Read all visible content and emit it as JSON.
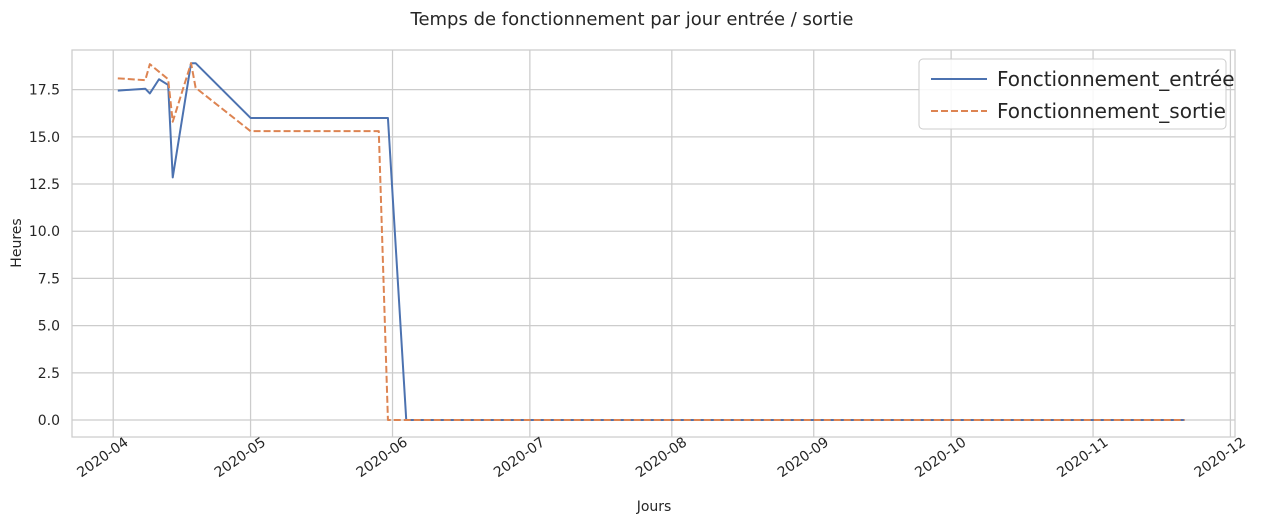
{
  "chart_data": {
    "type": "line",
    "title": "Temps de fonctionnement par jour entrée / sortie",
    "xlabel": "Jours",
    "ylabel": "Heures",
    "x_axis_type": "date",
    "xlim": [
      "2020-03-23",
      "2020-12-02"
    ],
    "ylim": [
      -0.9,
      19.6
    ],
    "xticks": [
      "2020-04-01",
      "2020-05-01",
      "2020-06-01",
      "2020-07-01",
      "2020-08-01",
      "2020-09-01",
      "2020-10-01",
      "2020-11-01",
      "2020-12-01"
    ],
    "xtick_labels": [
      "2020-04",
      "2020-05",
      "2020-06",
      "2020-07",
      "2020-08",
      "2020-09",
      "2020-10",
      "2020-11",
      "2020-12"
    ],
    "yticks": [
      0.0,
      2.5,
      5.0,
      7.5,
      10.0,
      12.5,
      15.0,
      17.5
    ],
    "ytick_labels": [
      "0.0",
      "2.5",
      "5.0",
      "7.5",
      "10.0",
      "12.5",
      "15.0",
      "17.5"
    ],
    "grid": true,
    "legend_position": "top-right",
    "series": [
      {
        "name": "Fonctionnement_entrée",
        "color": "#4c72b0",
        "style": "solid",
        "points": [
          [
            "2020-04-02",
            17.45
          ],
          [
            "2020-04-08",
            17.55
          ],
          [
            "2020-04-09",
            17.3
          ],
          [
            "2020-04-11",
            18.05
          ],
          [
            "2020-04-13",
            17.75
          ],
          [
            "2020-04-14",
            12.85
          ],
          [
            "2020-04-18",
            18.9
          ],
          [
            "2020-04-19",
            18.9
          ],
          [
            "2020-05-01",
            16.0
          ],
          [
            "2020-05-31",
            16.0
          ],
          [
            "2020-06-04",
            0.0
          ],
          [
            "2020-11-21",
            0.0
          ]
        ]
      },
      {
        "name": "Fonctionnement_sortie",
        "color": "#dd8452",
        "style": "dashed",
        "points": [
          [
            "2020-04-02",
            18.1
          ],
          [
            "2020-04-08",
            18.0
          ],
          [
            "2020-04-09",
            18.85
          ],
          [
            "2020-04-13",
            18.05
          ],
          [
            "2020-04-14",
            15.8
          ],
          [
            "2020-04-18",
            18.9
          ],
          [
            "2020-04-19",
            17.6
          ],
          [
            "2020-05-01",
            15.3
          ],
          [
            "2020-05-29",
            15.3
          ],
          [
            "2020-05-31",
            0.0
          ],
          [
            "2020-11-21",
            0.0
          ]
        ]
      }
    ]
  }
}
